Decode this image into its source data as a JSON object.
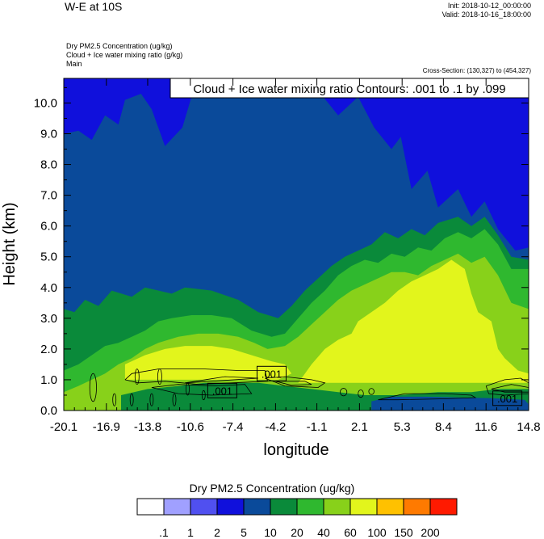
{
  "header": {
    "title": "W-E at 10S",
    "init": "Init: 2018-10-12_00:00:00",
    "valid": "Valid: 2018-10-16_18:00:00",
    "field1": "Dry PM2.5 Concentration   (ug/kg)",
    "field2": "Cloud + Ice water mixing ratio   (g/kg)",
    "field3": "Main",
    "cross_section": "Cross-Section: (130,327) to (454,327)"
  },
  "chart_data": {
    "type": "heatmap",
    "subtype": "filled contour cross-section with line contours",
    "contour_annotation": "Cloud + Ice water mixing ratio Contours: .001 to .1 by .099",
    "xlabel": "longitude",
    "ylabel": "Height (km)",
    "xlim": [
      -20.1,
      14.8
    ],
    "ylim": [
      0.0,
      10.8
    ],
    "x_ticks": [
      "-20.1",
      "-16.9",
      "-13.8",
      "-10.6",
      "-7.4",
      "-4.2",
      "-1.1",
      "2.1",
      "5.3",
      "8.4",
      "11.6",
      "14.8"
    ],
    "y_ticks": [
      "0.0",
      "1.0",
      "2.0",
      "3.0",
      "4.0",
      "5.0",
      "6.0",
      "7.0",
      "8.0",
      "9.0",
      "10.0"
    ],
    "contour_labels": [
      {
        "text": ".001",
        "x": -4.5,
        "y": 1.2
      },
      {
        "text": ".001",
        "x": -8.2,
        "y": 0.65
      },
      {
        "text": ".001",
        "x": 13.2,
        "y": 0.4
      }
    ],
    "colorbar": {
      "title": "Dry PM2.5 Concentration  (ug/kg)",
      "levels": [
        ".1",
        "1",
        "2",
        "5",
        "10",
        "20",
        "40",
        "60",
        "100",
        "150",
        "200"
      ],
      "colors": [
        "#ffffff",
        "#a0a0ff",
        "#5050f0",
        "#1010dc",
        "#0a4a9a",
        "#0a8a3a",
        "#2fb82f",
        "#88d11a",
        "#e2f51c",
        "#ffc100",
        "#ff7a00",
        "#ff1a00"
      ]
    },
    "palette": {
      "sky": "#1010dc",
      "deep": "#0a4a9a",
      "mid": "#0a8a3a",
      "green": "#2fb82f",
      "lime": "#88d11a",
      "yellow": "#e2f51c"
    }
  }
}
